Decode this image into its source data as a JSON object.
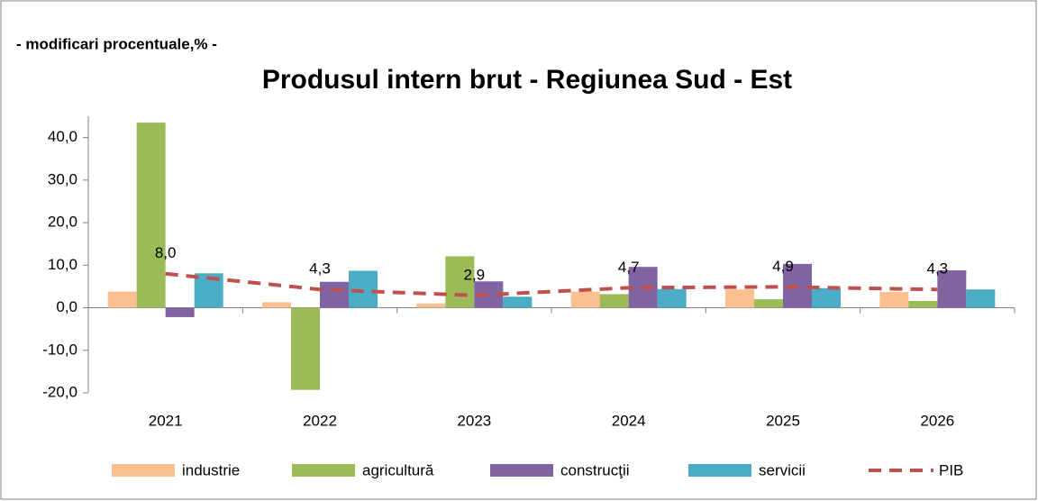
{
  "chart_data": {
    "type": "bar",
    "subtitle": "- modificari procentuale,% -",
    "title": "Produsul intern brut - Regiunea Sud - Est",
    "categories": [
      "2021",
      "2022",
      "2023",
      "2024",
      "2025",
      "2026"
    ],
    "series": [
      {
        "name": "industrie",
        "color": "#fac090",
        "values": [
          3.8,
          1.3,
          1.0,
          3.8,
          4.3,
          3.7
        ]
      },
      {
        "name": "agricultură",
        "color": "#9bbb59",
        "values": [
          43.5,
          -19.3,
          12.1,
          3.2,
          2.0,
          1.6
        ]
      },
      {
        "name": "construcţii",
        "color": "#8064a2",
        "values": [
          -2.2,
          6.1,
          6.2,
          9.6,
          10.3,
          8.8
        ]
      },
      {
        "name": "servicii",
        "color": "#4bacc6",
        "values": [
          8.1,
          8.7,
          2.6,
          4.4,
          4.6,
          4.3
        ]
      },
      {
        "name": "PIB",
        "type": "line",
        "color": "#c0504d",
        "values": [
          8.0,
          4.3,
          2.9,
          4.7,
          4.9,
          4.3
        ],
        "value_labels": [
          "8,0",
          "4,3",
          "2,9",
          "4,7",
          "4,9",
          "4,3"
        ]
      }
    ],
    "ylim": [
      -20,
      45
    ],
    "yticks": [
      {
        "value": -20,
        "label": "-20,0"
      },
      {
        "value": -10,
        "label": "-10,0"
      },
      {
        "value": 0,
        "label": "0,0"
      },
      {
        "value": 10,
        "label": "10,0"
      },
      {
        "value": 20,
        "label": "20,0"
      },
      {
        "value": 30,
        "label": "30,0"
      },
      {
        "value": 40,
        "label": "40,0"
      }
    ],
    "legend": "bottom"
  }
}
